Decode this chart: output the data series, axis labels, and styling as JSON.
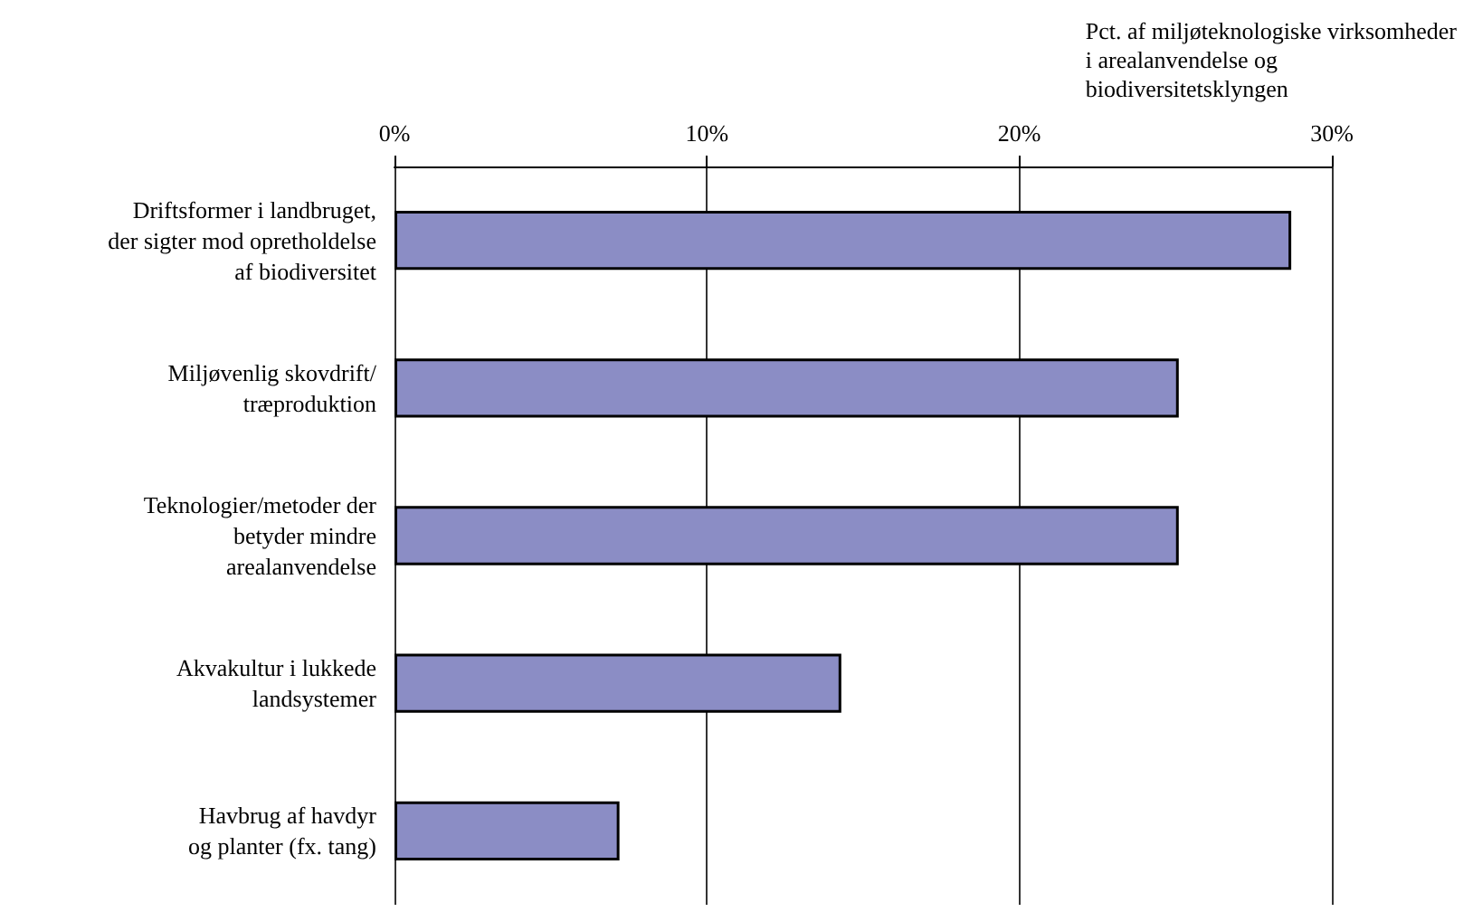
{
  "chart_data": {
    "type": "bar",
    "orientation": "horizontal",
    "xlabel": "Pct. af miljøteknologiske virksomheder\ni arealanvendelse og\nbiodiversitetsklyngen",
    "categories": [
      "Driftsformer i landbruget,\nder sigter mod opretholdelse\naf biodiversitet",
      "Miljøvenlig skovdrift/\ntræproduktion",
      "Teknologier/metoder der\nbetyder mindre\narealanvendelse",
      "Akvakultur i lukkede\nlandsystemer",
      "Havbrug af havdyr\nog planter (fx. tang)"
    ],
    "values": [
      28.7,
      25.1,
      25.1,
      14.3,
      7.2
    ],
    "color": "#8b8dc5",
    "xlim": [
      0,
      30
    ],
    "xticks": [
      {
        "value": 0,
        "label": "0%"
      },
      {
        "value": 10,
        "label": "10%"
      },
      {
        "value": 20,
        "label": "20%"
      },
      {
        "value": 30,
        "label": "30%"
      }
    ],
    "grid": "x"
  }
}
